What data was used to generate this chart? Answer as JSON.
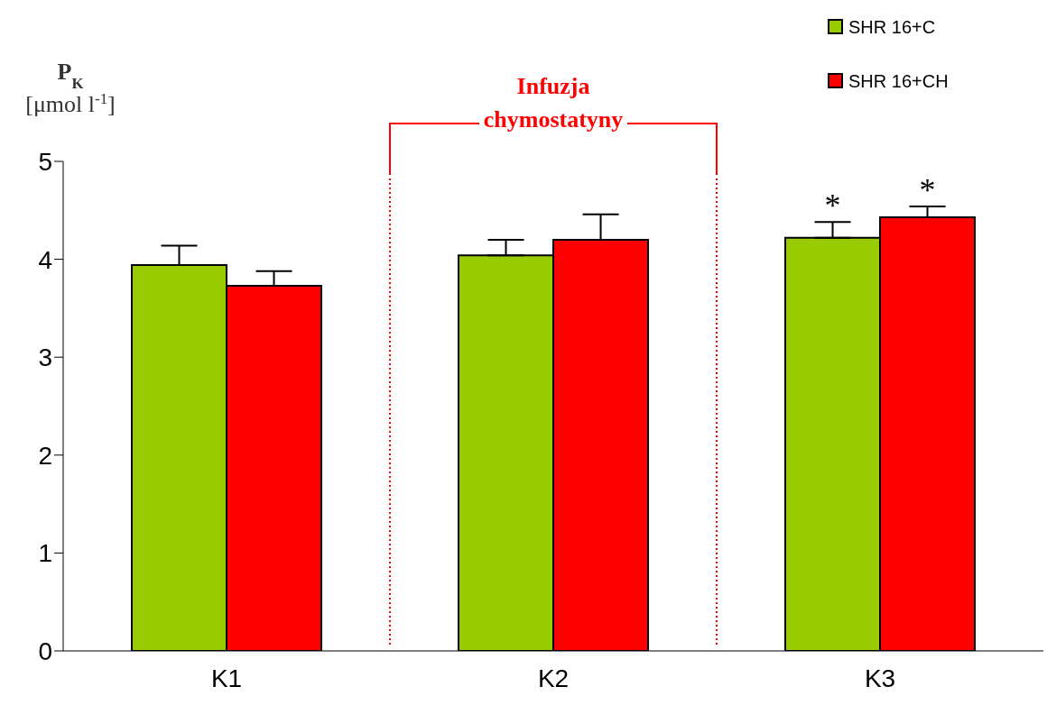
{
  "chart_data": {
    "type": "bar",
    "ylabel": "P$_{K}$\n[μmol l$^{-1}$]",
    "categories": [
      "K1",
      "K2",
      "K3"
    ],
    "series": [
      {
        "name": "SHR 16+C",
        "color": "#99cc00",
        "values": [
          3.94,
          4.04,
          4.22
        ],
        "errors": [
          0.2,
          0.16,
          0.16
        ],
        "value_labels": [
          null,
          null,
          "*"
        ]
      },
      {
        "name": "SHR 16+CH",
        "color": "#ff0000",
        "values": [
          3.73,
          4.2,
          4.43
        ],
        "errors": [
          0.15,
          0.26,
          0.11
        ],
        "value_labels": [
          null,
          null,
          "*"
        ]
      }
    ],
    "ylim": [
      0,
      5
    ],
    "yticks": [
      0,
      1,
      2,
      3,
      4,
      5
    ],
    "legend": "top right",
    "annotations": [
      "Infuzja\nchymostatyny"
    ]
  }
}
